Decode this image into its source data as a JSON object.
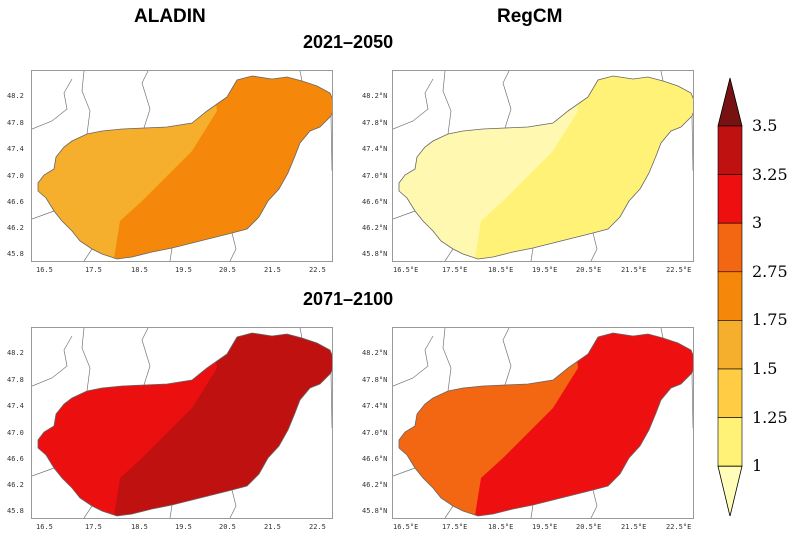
{
  "headers": {
    "col_left": "ALADIN",
    "col_right": "RegCM",
    "period_top": "2021–2050",
    "period_bottom": "2071–2100"
  },
  "axes": {
    "left_y": [
      "48.2",
      "47.8",
      "47.4",
      "47.0",
      "46.6",
      "46.2",
      "45.8"
    ],
    "left_x": [
      "16.5",
      "17.5",
      "18.5",
      "19.5",
      "20.5",
      "21.5",
      "22.5"
    ],
    "right_y": [
      "48.2°N",
      "47.8°N",
      "47.4°N",
      "47.0°N",
      "46.6°N",
      "46.2°N",
      "45.8°N"
    ],
    "right_x": [
      "16.5°E",
      "17.5°E",
      "18.5°E",
      "19.5°E",
      "20.5°E",
      "21.5°E",
      "22.5°E"
    ]
  },
  "panels": [
    {
      "model": "ALADIN",
      "period": "2021–2050",
      "dominant_class": "1.75–2.75",
      "west_class": "1.5–1.75",
      "west_color": "#F6AE2D",
      "east_color": "#F5880A"
    },
    {
      "model": "RegCM",
      "period": "2021–2050",
      "dominant_class": "1–1.25",
      "west_class": "1–1.25 (lighter)",
      "west_color": "#FFF8B0",
      "east_color": "#FFF277"
    },
    {
      "model": "ALADIN",
      "period": "2071–2100",
      "dominant_class": "3.25–3.5",
      "west_class": "3–3.25",
      "west_color": "#EC0F0F",
      "east_color": "#C01111"
    },
    {
      "model": "RegCM",
      "period": "2071–2100",
      "dominant_class": "3–3.25",
      "west_class": "2.75–3",
      "west_color": "#F36612",
      "east_color": "#EE1010"
    }
  ],
  "colorbar": {
    "labels": [
      "3.5",
      "3.25",
      "3",
      "2.75",
      "1.75",
      "1.5",
      "1.25",
      "1"
    ],
    "colors": [
      "#781212",
      "#C01111",
      "#EE1010",
      "#F36612",
      "#F5880A",
      "#F6AE2D",
      "#FFCC44",
      "#FFF277",
      "#FFFDB8"
    ]
  }
}
